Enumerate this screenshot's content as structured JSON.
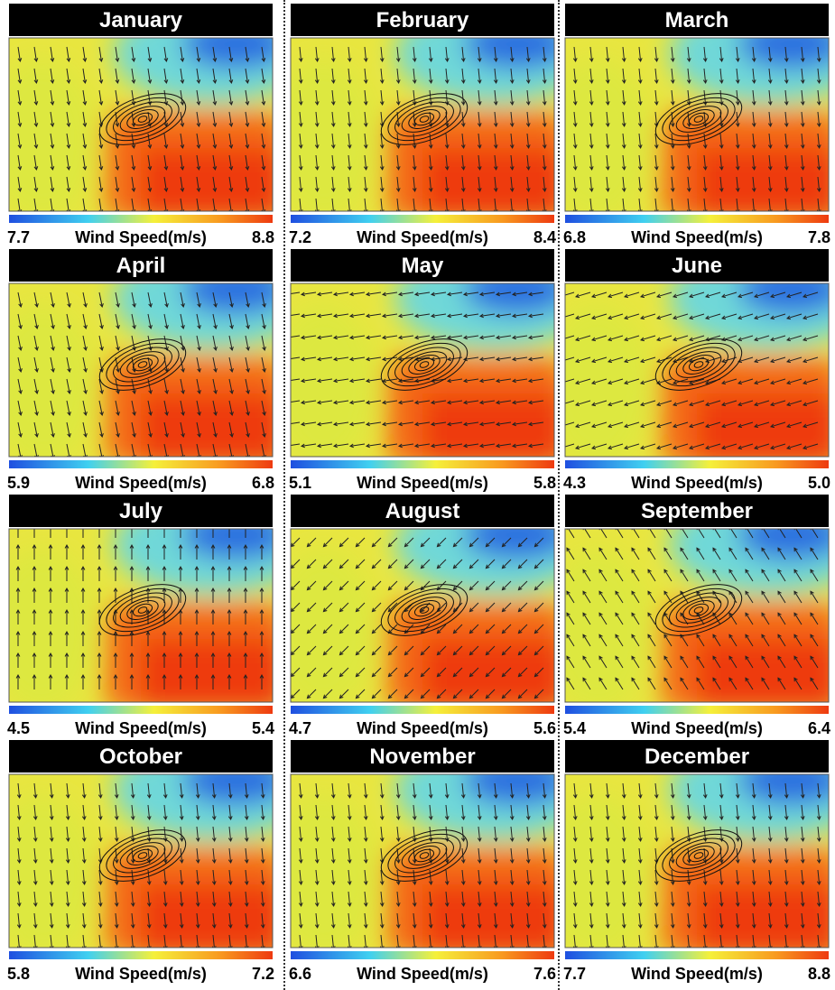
{
  "colorbar_label": "Wind Speed(m/s)",
  "panels": [
    {
      "title": "January",
      "min": "7.7",
      "max": "8.8"
    },
    {
      "title": "February",
      "min": "7.2",
      "max": "8.4"
    },
    {
      "title": "March",
      "min": "6.8",
      "max": "7.8"
    },
    {
      "title": "April",
      "min": "5.9",
      "max": "6.8"
    },
    {
      "title": "May",
      "min": "5.1",
      "max": "5.8"
    },
    {
      "title": "June",
      "min": "4.3",
      "max": "5.0"
    },
    {
      "title": "July",
      "min": "4.5",
      "max": "5.4"
    },
    {
      "title": "August",
      "min": "4.7",
      "max": "5.6"
    },
    {
      "title": "September",
      "min": "5.4",
      "max": "6.4"
    },
    {
      "title": "October",
      "min": "5.8",
      "max": "7.2"
    },
    {
      "title": "November",
      "min": "6.6",
      "max": "7.6"
    },
    {
      "title": "December",
      "min": "7.7",
      "max": "8.8"
    }
  ]
}
